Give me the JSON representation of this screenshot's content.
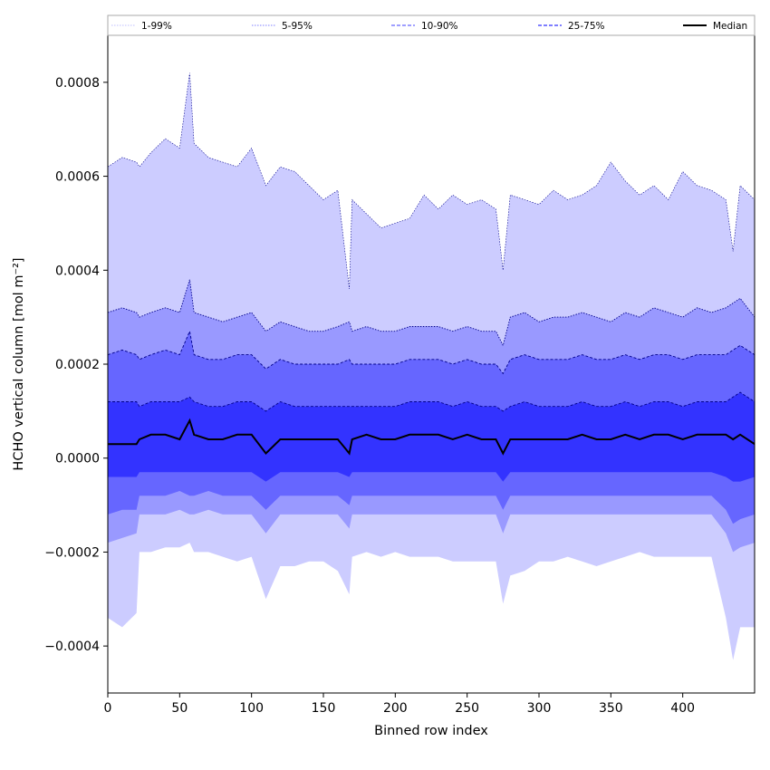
{
  "chart_data": {
    "type": "area",
    "xlabel": "Binned row index",
    "ylabel": "HCHO vertical column [mol m⁻²]",
    "xlim": [
      0,
      450
    ],
    "ylim": [
      -0.0005,
      0.0009
    ],
    "grid": false,
    "x_ticks": [
      0,
      50,
      100,
      150,
      200,
      250,
      300,
      350,
      400
    ],
    "x_tick_labels": [
      "0",
      "50",
      "100",
      "150",
      "200",
      "250",
      "300",
      "350",
      "400"
    ],
    "y_ticks": [
      -0.0004,
      -0.0002,
      0.0,
      0.0002,
      0.0004,
      0.0006,
      0.0008
    ],
    "y_tick_labels": [
      "−0.0004",
      "−0.0002",
      "0.0000",
      "0.0002",
      "0.0004",
      "0.0006",
      "0.0008"
    ],
    "legend_position": "top",
    "x": [
      0,
      10,
      20,
      22,
      30,
      40,
      50,
      57,
      60,
      70,
      80,
      90,
      100,
      110,
      120,
      130,
      140,
      150,
      160,
      168,
      170,
      180,
      190,
      200,
      210,
      220,
      230,
      240,
      250,
      260,
      270,
      275,
      280,
      290,
      300,
      310,
      320,
      330,
      340,
      350,
      360,
      370,
      380,
      390,
      400,
      410,
      420,
      430,
      435,
      440,
      450
    ],
    "series": [
      {
        "name": "1-99%",
        "color": "#ccccff",
        "upper": [
          0.00062,
          0.00064,
          0.00063,
          0.00062,
          0.00065,
          0.00068,
          0.00066,
          0.00082,
          0.00067,
          0.00064,
          0.00063,
          0.00062,
          0.00066,
          0.00058,
          0.00062,
          0.00061,
          0.00058,
          0.00055,
          0.00057,
          0.00036,
          0.00055,
          0.00052,
          0.00049,
          0.0005,
          0.00051,
          0.00056,
          0.00053,
          0.00056,
          0.00054,
          0.00055,
          0.00053,
          0.0004,
          0.00056,
          0.00055,
          0.00054,
          0.00057,
          0.00055,
          0.00056,
          0.00058,
          0.00063,
          0.00059,
          0.00056,
          0.00058,
          0.00055,
          0.00061,
          0.00058,
          0.00057,
          0.00055,
          0.00044,
          0.00058,
          0.00055
        ],
        "lower": [
          -0.00034,
          -0.00036,
          -0.00033,
          -0.0002,
          -0.0002,
          -0.00019,
          -0.00019,
          -0.00018,
          -0.0002,
          -0.0002,
          -0.00021,
          -0.00022,
          -0.00021,
          -0.0003,
          -0.00023,
          -0.00023,
          -0.00022,
          -0.00022,
          -0.00024,
          -0.00029,
          -0.00021,
          -0.0002,
          -0.00021,
          -0.0002,
          -0.00021,
          -0.00021,
          -0.00021,
          -0.00022,
          -0.00022,
          -0.00022,
          -0.00022,
          -0.00031,
          -0.00025,
          -0.00024,
          -0.00022,
          -0.00022,
          -0.00021,
          -0.00022,
          -0.00023,
          -0.00022,
          -0.00021,
          -0.0002,
          -0.00021,
          -0.00021,
          -0.00021,
          -0.00021,
          -0.00021,
          -0.00034,
          -0.00043,
          -0.00036,
          -0.00036
        ]
      },
      {
        "name": "5-95%",
        "color": "#9999ff",
        "upper": [
          0.00031,
          0.00032,
          0.00031,
          0.0003,
          0.00031,
          0.00032,
          0.00031,
          0.00038,
          0.00031,
          0.0003,
          0.00029,
          0.0003,
          0.00031,
          0.00027,
          0.00029,
          0.00028,
          0.00027,
          0.00027,
          0.00028,
          0.00029,
          0.00027,
          0.00028,
          0.00027,
          0.00027,
          0.00028,
          0.00028,
          0.00028,
          0.00027,
          0.00028,
          0.00027,
          0.00027,
          0.00024,
          0.0003,
          0.00031,
          0.00029,
          0.0003,
          0.0003,
          0.00031,
          0.0003,
          0.00029,
          0.00031,
          0.0003,
          0.00032,
          0.00031,
          0.0003,
          0.00032,
          0.00031,
          0.00032,
          0.00033,
          0.00034,
          0.0003
        ],
        "lower": [
          -0.00018,
          -0.00017,
          -0.00016,
          -0.00012,
          -0.00012,
          -0.00012,
          -0.00011,
          -0.00012,
          -0.00012,
          -0.00011,
          -0.00012,
          -0.00012,
          -0.00012,
          -0.00016,
          -0.00012,
          -0.00012,
          -0.00012,
          -0.00012,
          -0.00012,
          -0.00015,
          -0.00012,
          -0.00012,
          -0.00012,
          -0.00012,
          -0.00012,
          -0.00012,
          -0.00012,
          -0.00012,
          -0.00012,
          -0.00012,
          -0.00012,
          -0.00016,
          -0.00012,
          -0.00012,
          -0.00012,
          -0.00012,
          -0.00012,
          -0.00012,
          -0.00012,
          -0.00012,
          -0.00012,
          -0.00012,
          -0.00012,
          -0.00012,
          -0.00012,
          -0.00012,
          -0.00012,
          -0.00016,
          -0.0002,
          -0.00019,
          -0.00018
        ]
      },
      {
        "name": "10-90%",
        "color": "#6666ff",
        "upper": [
          0.00022,
          0.00023,
          0.00022,
          0.00021,
          0.00022,
          0.00023,
          0.00022,
          0.00027,
          0.00022,
          0.00021,
          0.00021,
          0.00022,
          0.00022,
          0.00019,
          0.00021,
          0.0002,
          0.0002,
          0.0002,
          0.0002,
          0.00021,
          0.0002,
          0.0002,
          0.0002,
          0.0002,
          0.00021,
          0.00021,
          0.00021,
          0.0002,
          0.00021,
          0.0002,
          0.0002,
          0.00018,
          0.00021,
          0.00022,
          0.00021,
          0.00021,
          0.00021,
          0.00022,
          0.00021,
          0.00021,
          0.00022,
          0.00021,
          0.00022,
          0.00022,
          0.00021,
          0.00022,
          0.00022,
          0.00022,
          0.00023,
          0.00024,
          0.00022
        ],
        "lower": [
          -0.00012,
          -0.00011,
          -0.00011,
          -8e-05,
          -8e-05,
          -8e-05,
          -7e-05,
          -8e-05,
          -8e-05,
          -7e-05,
          -8e-05,
          -8e-05,
          -8e-05,
          -0.00011,
          -8e-05,
          -8e-05,
          -8e-05,
          -8e-05,
          -8e-05,
          -0.0001,
          -8e-05,
          -8e-05,
          -8e-05,
          -8e-05,
          -8e-05,
          -8e-05,
          -8e-05,
          -8e-05,
          -8e-05,
          -8e-05,
          -8e-05,
          -0.00011,
          -8e-05,
          -8e-05,
          -8e-05,
          -8e-05,
          -8e-05,
          -8e-05,
          -8e-05,
          -8e-05,
          -8e-05,
          -8e-05,
          -8e-05,
          -8e-05,
          -8e-05,
          -8e-05,
          -8e-05,
          -0.00011,
          -0.00014,
          -0.00013,
          -0.00012
        ]
      },
      {
        "name": "25-75%",
        "color": "#3333ff",
        "upper": [
          0.00012,
          0.00012,
          0.00012,
          0.00011,
          0.00012,
          0.00012,
          0.00012,
          0.00013,
          0.00012,
          0.00011,
          0.00011,
          0.00012,
          0.00012,
          0.0001,
          0.00012,
          0.00011,
          0.00011,
          0.00011,
          0.00011,
          0.00011,
          0.00011,
          0.00011,
          0.00011,
          0.00011,
          0.00012,
          0.00012,
          0.00012,
          0.00011,
          0.00012,
          0.00011,
          0.00011,
          0.0001,
          0.00011,
          0.00012,
          0.00011,
          0.00011,
          0.00011,
          0.00012,
          0.00011,
          0.00011,
          0.00012,
          0.00011,
          0.00012,
          0.00012,
          0.00011,
          0.00012,
          0.00012,
          0.00012,
          0.00013,
          0.00014,
          0.00012
        ],
        "lower": [
          -4e-05,
          -4e-05,
          -4e-05,
          -3e-05,
          -3e-05,
          -3e-05,
          -3e-05,
          -3e-05,
          -3e-05,
          -3e-05,
          -3e-05,
          -3e-05,
          -3e-05,
          -5e-05,
          -3e-05,
          -3e-05,
          -3e-05,
          -3e-05,
          -3e-05,
          -4e-05,
          -3e-05,
          -3e-05,
          -3e-05,
          -3e-05,
          -3e-05,
          -3e-05,
          -3e-05,
          -3e-05,
          -3e-05,
          -3e-05,
          -3e-05,
          -5e-05,
          -3e-05,
          -3e-05,
          -3e-05,
          -3e-05,
          -3e-05,
          -3e-05,
          -3e-05,
          -3e-05,
          -3e-05,
          -3e-05,
          -3e-05,
          -3e-05,
          -3e-05,
          -3e-05,
          -3e-05,
          -4e-05,
          -5e-05,
          -5e-05,
          -4e-05
        ]
      },
      {
        "name": "Median",
        "color": "#000000",
        "values": [
          3e-05,
          3e-05,
          3e-05,
          4e-05,
          5e-05,
          5e-05,
          4e-05,
          8e-05,
          5e-05,
          4e-05,
          4e-05,
          5e-05,
          5e-05,
          1e-05,
          4e-05,
          4e-05,
          4e-05,
          4e-05,
          4e-05,
          1e-05,
          4e-05,
          5e-05,
          4e-05,
          4e-05,
          5e-05,
          5e-05,
          5e-05,
          4e-05,
          5e-05,
          4e-05,
          4e-05,
          1e-05,
          4e-05,
          4e-05,
          4e-05,
          4e-05,
          4e-05,
          5e-05,
          4e-05,
          4e-05,
          5e-05,
          4e-05,
          5e-05,
          5e-05,
          4e-05,
          5e-05,
          5e-05,
          5e-05,
          4e-05,
          5e-05,
          3e-05
        ]
      }
    ],
    "legend": [
      {
        "label": "1-99%",
        "color": "#ccccff",
        "style": "dotted"
      },
      {
        "label": "5-95%",
        "color": "#9999ff",
        "style": "dotted"
      },
      {
        "label": "10-90%",
        "color": "#6666ff",
        "style": "dashed"
      },
      {
        "label": "25-75%",
        "color": "#3333ff",
        "style": "dashed"
      },
      {
        "label": "Median",
        "color": "#000000",
        "style": "solid"
      }
    ]
  }
}
